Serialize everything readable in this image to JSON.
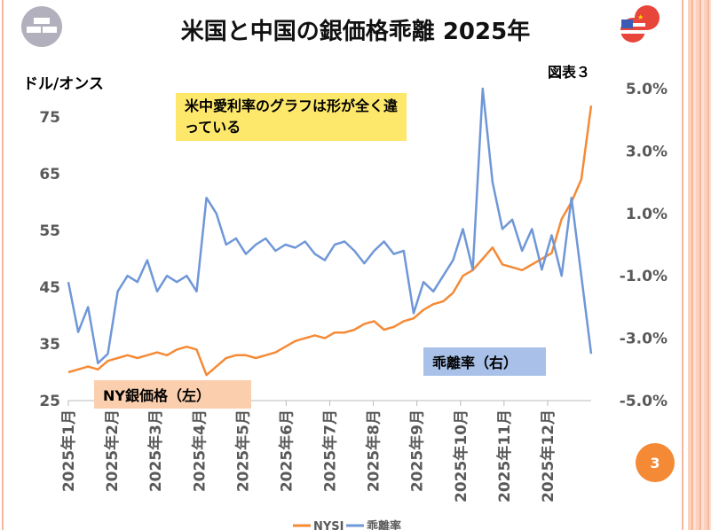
{
  "header": {
    "title": "米国と中国の銀価格乖離 2025年",
    "figure_label": "図表３",
    "page_number": "3"
  },
  "annotations": {
    "note": "米中愛利率のグラフは形が全く違っている",
    "left_series_label": "NY銀価格（左）",
    "right_series_label": "乖離率（右）"
  },
  "colors": {
    "nysi": "#f58a36",
    "divergence": "#6f97d8"
  },
  "chart_data": {
    "type": "line",
    "title": "米国と中国の銀価格乖離 2025年",
    "ylabel": "ドル/オンス",
    "ylim": [
      25,
      80
    ],
    "yticks": [
      25,
      35,
      45,
      55,
      65,
      75
    ],
    "ytick_labels": [
      "25",
      "35",
      "45",
      "55",
      "65",
      "75"
    ],
    "y2lim": [
      -5,
      5
    ],
    "y2ticks": [
      5,
      3,
      1,
      -1,
      -3,
      -5
    ],
    "y2tick_labels": [
      "5.0%",
      "3.0%",
      "1.0%",
      "-1.0%",
      "-3.0%",
      "-5.0%"
    ],
    "xtick_labels": [
      "2025年1月",
      "2025年2月",
      "2025年3月",
      "2025年4月",
      "2025年5月",
      "2025年6月",
      "2025年7月",
      "2025年8月",
      "2025年9月",
      "2025年10月",
      "2025年11月",
      "2025年12月"
    ],
    "legend": [
      "NYSI",
      "乖離率"
    ],
    "legend_position": "bottom",
    "series": [
      {
        "name": "NYSI",
        "axis": "left",
        "values": [
          30,
          30.5,
          31,
          30.5,
          32,
          32.5,
          33,
          32.5,
          33,
          33.5,
          33,
          34,
          34.5,
          34,
          29.5,
          31,
          32.5,
          33,
          33,
          32.5,
          33,
          33.5,
          34.5,
          35.5,
          36,
          36.5,
          36,
          37,
          37,
          37.5,
          38.5,
          39,
          37.5,
          38,
          39,
          39.5,
          41,
          42,
          42.5,
          44,
          47,
          48,
          50,
          52,
          49,
          48.5,
          48,
          49,
          50,
          51,
          57,
          60,
          64,
          77
        ]
      },
      {
        "name": "乖離率",
        "axis": "right",
        "values": [
          -1.2,
          -2.8,
          -2.0,
          -3.8,
          -3.5,
          -1.5,
          -1.0,
          -1.2,
          -0.5,
          -1.5,
          -1.0,
          -1.2,
          -1.0,
          -1.5,
          1.5,
          1.0,
          0,
          0.2,
          -0.3,
          0,
          0.2,
          -0.2,
          0,
          -0.1,
          0.1,
          -0.3,
          -0.5,
          0,
          0.1,
          -0.2,
          -0.6,
          -0.2,
          0.1,
          -0.3,
          -0.2,
          -2.2,
          -1.2,
          -1.5,
          -1.0,
          -0.5,
          0.5,
          -0.8,
          5.0,
          2.0,
          0.5,
          0.8,
          -0.2,
          0.5,
          -0.8,
          0.3,
          -1.0,
          1.5,
          -1.0,
          -3.5
        ]
      }
    ]
  }
}
